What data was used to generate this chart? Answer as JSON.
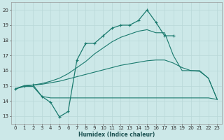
{
  "xlabel": "Humidex (Indice chaleur)",
  "xlim": [
    -0.5,
    23.5
  ],
  "ylim": [
    12.5,
    20.5
  ],
  "yticks": [
    13,
    14,
    15,
    16,
    17,
    18,
    19,
    20
  ],
  "xticks": [
    0,
    1,
    2,
    3,
    4,
    5,
    6,
    7,
    8,
    9,
    10,
    11,
    12,
    13,
    14,
    15,
    16,
    17,
    18,
    19,
    20,
    21,
    22,
    23
  ],
  "bg_color": "#cce8e8",
  "grid_color": "#b8d8d8",
  "line_color": "#1a7a6e",
  "lines": [
    {
      "x": [
        0,
        1,
        2,
        3,
        4,
        5,
        6,
        7,
        8,
        9,
        10,
        11,
        12,
        13,
        14,
        15,
        16,
        17,
        18,
        19,
        20,
        21,
        22,
        23
      ],
      "y": [
        14.8,
        14.95,
        14.95,
        14.3,
        14.2,
        14.2,
        14.2,
        14.2,
        14.2,
        14.2,
        14.2,
        14.2,
        14.2,
        14.2,
        14.2,
        14.2,
        14.2,
        14.2,
        14.2,
        14.2,
        14.2,
        14.2,
        14.2,
        14.1
      ],
      "marker": false,
      "lw": 0.8
    },
    {
      "x": [
        0,
        1,
        2,
        3,
        4,
        5,
        6,
        7,
        8,
        9,
        10,
        11,
        12,
        13,
        14,
        15,
        16,
        17,
        18,
        19,
        20,
        21,
        22,
        23
      ],
      "y": [
        14.8,
        15.0,
        15.05,
        15.1,
        15.2,
        15.3,
        15.45,
        15.6,
        15.75,
        15.9,
        16.05,
        16.2,
        16.35,
        16.45,
        16.55,
        16.65,
        16.7,
        16.7,
        16.5,
        16.2,
        16.0,
        15.95,
        15.5,
        14.1
      ],
      "marker": false,
      "lw": 0.8
    },
    {
      "x": [
        0,
        1,
        2,
        3,
        4,
        5,
        6,
        7,
        8,
        9,
        10,
        11,
        12,
        13,
        14,
        15,
        16,
        17,
        18,
        19,
        20,
        21,
        22,
        23
      ],
      "y": [
        14.8,
        15.0,
        15.05,
        15.15,
        15.3,
        15.5,
        15.8,
        16.2,
        16.6,
        17.1,
        17.5,
        17.9,
        18.2,
        18.4,
        18.6,
        18.7,
        18.5,
        18.5,
        17.0,
        16.0,
        16.0,
        16.0,
        15.5,
        14.1
      ],
      "marker": false,
      "lw": 0.8
    },
    {
      "x": [
        0,
        1,
        2,
        3,
        4,
        5,
        6,
        7,
        8,
        9,
        10,
        11,
        12,
        13,
        14,
        15,
        16,
        17,
        18
      ],
      "y": [
        14.8,
        15.0,
        15.05,
        14.3,
        13.9,
        12.95,
        13.3,
        16.7,
        17.8,
        17.8,
        18.3,
        18.8,
        19.0,
        19.0,
        19.3,
        20.0,
        19.2,
        18.3,
        18.3
      ],
      "marker": true,
      "lw": 0.9
    }
  ]
}
